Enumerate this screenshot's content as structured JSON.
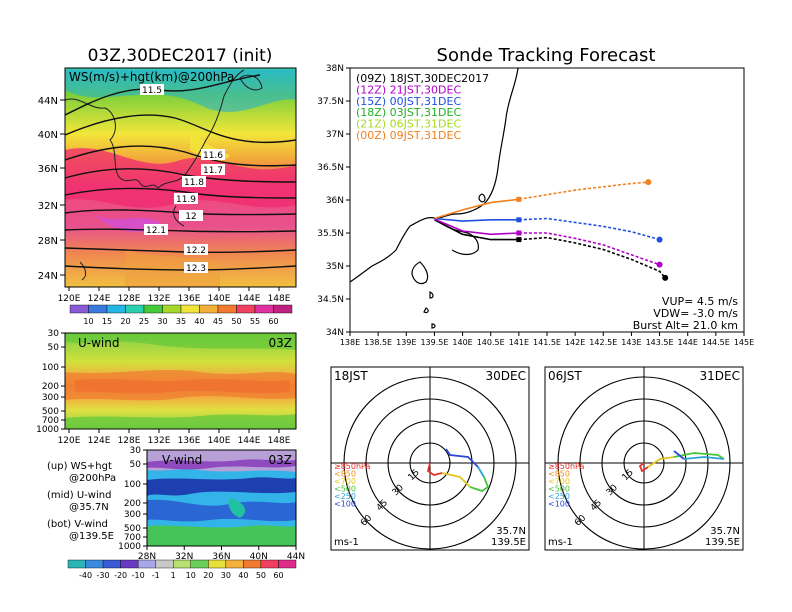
{
  "left": {
    "title": "03Z,30DEC2017 (init)",
    "map_label": "WS(m/s)+hgt(km)@200hPa",
    "lat_ticks": [
      "44N",
      "40N",
      "36N",
      "32N",
      "28N",
      "24N"
    ],
    "lon_ticks": [
      "120E",
      "124E",
      "128E",
      "132E",
      "136E",
      "140E",
      "144E",
      "148E"
    ],
    "contours": [
      "11.5",
      "11.6",
      "11.7",
      "11.8",
      "11.9",
      "12",
      "12.1",
      "12.2",
      "12.3"
    ],
    "colorbar_ticks": [
      "10",
      "15",
      "20",
      "25",
      "30",
      "35",
      "40",
      "45",
      "50",
      "55",
      "60"
    ],
    "uwind": {
      "label": "U-wind",
      "time": "03Z",
      "y_ticks": [
        "30",
        "50",
        "100",
        "200",
        "300",
        "500",
        "700",
        "1000"
      ]
    },
    "vwind": {
      "label": "V-wind",
      "time": "03Z",
      "y_ticks": [
        "30",
        "50",
        "100",
        "200",
        "300",
        "500",
        "700",
        "1000"
      ],
      "x_ticks": [
        "28N",
        "32N",
        "36N",
        "40N",
        "44N"
      ]
    },
    "bottom_colorbar_ticks": [
      "-40",
      "-30",
      "-20",
      "-10",
      "-1",
      "1",
      "10",
      "20",
      "30",
      "40",
      "50",
      "60"
    ],
    "legend": [
      {
        "a": "(up) WS+hgt",
        "b": "@200hPa"
      },
      {
        "a": "(mid) U-wind",
        "b": "@35.7N"
      },
      {
        "a": "(bot) V-wind",
        "b": "@139.5E"
      }
    ]
  },
  "right": {
    "title": "Sonde Tracking Forecast",
    "lat_ticks": [
      "38N",
      "37.5N",
      "37N",
      "36.5N",
      "36N",
      "35.5N",
      "35N",
      "34.5N",
      "34N"
    ],
    "lon_ticks": [
      "138E",
      "138.5E",
      "139E",
      "139.5E",
      "140E",
      "140.5E",
      "141E",
      "141.5E",
      "142E",
      "142.5E",
      "143E",
      "143.5E",
      "144E",
      "144.5E",
      "145E"
    ],
    "info": {
      "vup": "VUP= 4.5 m/s",
      "vdw": "VDW= -3.0 m/s",
      "burst": "Burst Alt= 21.0 km"
    },
    "hodo1": {
      "left": "18JST",
      "right": "30DEC",
      "loc1": "35.7N",
      "loc2": "139.5E",
      "unit": "ms-1"
    },
    "hodo2": {
      "left": "06JST",
      "right": "31DEC",
      "loc1": "35.7N",
      "loc2": "139.5E",
      "unit": "ms-1"
    },
    "ring_labels": [
      "15",
      "30",
      "45",
      "60"
    ],
    "pressure_legend": [
      {
        "text": "≥850hPa",
        "color": "#e8322c"
      },
      {
        "text": "<850",
        "color": "#f08c1a"
      },
      {
        "text": "<700",
        "color": "#e3c51c"
      },
      {
        "text": "<500",
        "color": "#45c43a"
      },
      {
        "text": "<250",
        "color": "#2aa3d9"
      },
      {
        "text": "<100",
        "color": "#2a48d9"
      }
    ]
  },
  "chart_data": {
    "type": "line",
    "title": "Sonde Tracking Forecast",
    "xlim": [
      138,
      145
    ],
    "ylim": [
      34,
      38
    ],
    "series": [
      {
        "name": "(09Z) 18JST,30DEC2017",
        "color": "#000000",
        "x": [
          139.5,
          140.0,
          140.5,
          141.0,
          141.5,
          142.0,
          142.5,
          143.0,
          143.5,
          143.6
        ],
        "y": [
          35.7,
          35.48,
          35.4,
          35.4,
          35.43,
          35.35,
          35.25,
          35.1,
          34.92,
          34.82
        ]
      },
      {
        "name": "(12Z) 21JST,30DEC",
        "color": "#b000c8",
        "x": [
          139.5,
          140.0,
          140.5,
          141.0,
          141.5,
          142.0,
          142.5,
          143.0,
          143.5
        ],
        "y": [
          35.71,
          35.53,
          35.48,
          35.5,
          35.5,
          35.42,
          35.32,
          35.17,
          35.02
        ]
      },
      {
        "name": "(15Z) 00JST,31DEC",
        "color": "#2050e0",
        "x": [
          139.5,
          140.0,
          140.5,
          141.0,
          141.5,
          142.0,
          142.5,
          143.0,
          143.5
        ],
        "y": [
          35.72,
          35.68,
          35.7,
          35.7,
          35.72,
          35.66,
          35.6,
          35.52,
          35.4
        ]
      },
      {
        "name": "(18Z) 03JST,31DEC",
        "color": "#20b020",
        "x": [],
        "y": []
      },
      {
        "name": "(21Z) 06JST,31DEC",
        "color": "#a8d820",
        "x": [],
        "y": []
      },
      {
        "name": "(00Z) 09JST,31DEC",
        "color": "#f08020",
        "x": [
          139.5,
          140.0,
          140.5,
          141.0,
          141.5,
          142.0,
          142.5,
          143.0,
          143.3
        ],
        "y": [
          35.72,
          35.85,
          35.96,
          36.01,
          36.08,
          36.15,
          36.2,
          36.25,
          36.27
        ]
      }
    ]
  }
}
